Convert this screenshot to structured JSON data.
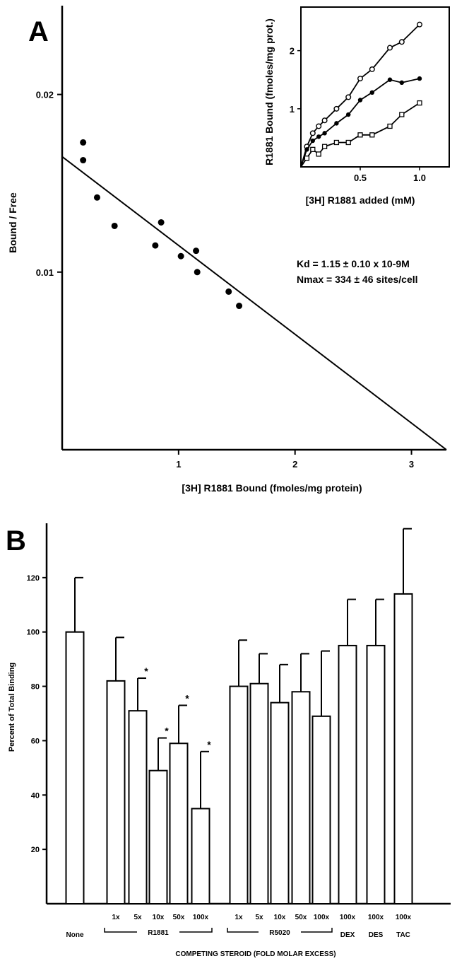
{
  "chart_data": [
    {
      "panel": "A",
      "type": "scatter",
      "xlabel": "[3H] R1881 Bound (fmoles/mg protein)",
      "ylabel": "Bound / Free",
      "xlim": [
        0,
        3.3
      ],
      "ylim": [
        0,
        0.025
      ],
      "xticks": [
        {
          "v": 1,
          "label": "1"
        },
        {
          "v": 2,
          "label": "2"
        },
        {
          "v": 3,
          "label": "3"
        }
      ],
      "yticks": [
        {
          "v": 0.01,
          "label": "0.01"
        },
        {
          "v": 0.02,
          "label": "0.02"
        }
      ],
      "points": [
        {
          "x": 0.18,
          "y": 0.0173
        },
        {
          "x": 0.18,
          "y": 0.0163
        },
        {
          "x": 0.3,
          "y": 0.0142
        },
        {
          "x": 0.45,
          "y": 0.0126
        },
        {
          "x": 0.8,
          "y": 0.0115
        },
        {
          "x": 0.85,
          "y": 0.0128
        },
        {
          "x": 1.02,
          "y": 0.0109
        },
        {
          "x": 1.15,
          "y": 0.0112
        },
        {
          "x": 1.16,
          "y": 0.01
        },
        {
          "x": 1.43,
          "y": 0.0089
        },
        {
          "x": 1.52,
          "y": 0.0081
        }
      ],
      "fit_line": {
        "x": [
          0,
          3.3
        ],
        "y": [
          0.0165,
          0
        ]
      },
      "annotations": [
        "Kd = 1.15 ± 0.10 x 10-9M",
        "Nmax = 334 ± 46 sites/cell"
      ],
      "inset": {
        "type": "line",
        "xlabel": "[3H] R1881 added (mM)",
        "ylabel": "R1881 Bound (fmoles/mg prot.)",
        "xlim": [
          0,
          1.25
        ],
        "ylim": [
          0,
          2.75
        ],
        "xticks": [
          {
            "v": 0.5,
            "label": "0.5"
          },
          {
            "v": 1.0,
            "label": "1.0"
          }
        ],
        "yticks": [
          {
            "v": 1,
            "label": "1"
          },
          {
            "v": 2,
            "label": "2"
          }
        ],
        "series": [
          {
            "marker": "open-circle",
            "x": [
              0.05,
              0.1,
              0.15,
              0.2,
              0.3,
              0.4,
              0.5,
              0.6,
              0.75,
              0.85,
              1.0
            ],
            "y": [
              0.35,
              0.58,
              0.7,
              0.8,
              1.0,
              1.2,
              1.52,
              1.68,
              2.05,
              2.15,
              2.45
            ]
          },
          {
            "marker": "filled-circle",
            "x": [
              0.05,
              0.1,
              0.15,
              0.2,
              0.3,
              0.4,
              0.5,
              0.6,
              0.75,
              0.85,
              1.0
            ],
            "y": [
              0.3,
              0.45,
              0.52,
              0.58,
              0.75,
              0.9,
              1.15,
              1.28,
              1.5,
              1.45,
              1.52
            ]
          },
          {
            "marker": "open-square",
            "x": [
              0.05,
              0.1,
              0.15,
              0.2,
              0.3,
              0.4,
              0.5,
              0.6,
              0.75,
              0.85,
              1.0
            ],
            "y": [
              0.15,
              0.3,
              0.22,
              0.35,
              0.42,
              0.42,
              0.55,
              0.55,
              0.7,
              0.9,
              1.1
            ]
          }
        ]
      }
    },
    {
      "panel": "B",
      "type": "bar",
      "ylabel": "Percent of Total Binding",
      "xlabel": "COMPETING STEROID (FOLD MOLAR EXCESS)",
      "ylim": [
        0,
        140
      ],
      "yticks": [
        {
          "v": 20,
          "label": "20"
        },
        {
          "v": 40,
          "label": "40"
        },
        {
          "v": 60,
          "label": "60"
        },
        {
          "v": 80,
          "label": "80"
        },
        {
          "v": 100,
          "label": "100"
        },
        {
          "v": 120,
          "label": "120"
        }
      ],
      "bars": [
        {
          "label": "None",
          "group": "",
          "value": 100,
          "error": 20,
          "significant": false
        },
        {
          "label": "1x",
          "group": "R1881",
          "value": 82,
          "error": 16,
          "significant": false
        },
        {
          "label": "5x",
          "group": "R1881",
          "value": 71,
          "error": 12,
          "significant": true
        },
        {
          "label": "10x",
          "group": "R1881",
          "value": 49,
          "error": 12,
          "significant": true
        },
        {
          "label": "50x",
          "group": "R1881",
          "value": 59,
          "error": 14,
          "significant": true
        },
        {
          "label": "100x",
          "group": "R1881",
          "value": 35,
          "error": 21,
          "significant": true
        },
        {
          "label": "1x",
          "group": "R5020",
          "value": 80,
          "error": 17,
          "significant": false
        },
        {
          "label": "5x",
          "group": "R5020",
          "value": 81,
          "error": 11,
          "significant": false
        },
        {
          "label": "10x",
          "group": "R5020",
          "value": 74,
          "error": 14,
          "significant": false
        },
        {
          "label": "50x",
          "group": "R5020",
          "value": 78,
          "error": 14,
          "significant": false
        },
        {
          "label": "100x",
          "group": "R5020",
          "value": 69,
          "error": 24,
          "significant": false
        },
        {
          "label": "100x",
          "group": "DEX",
          "value": 95,
          "error": 17,
          "significant": false
        },
        {
          "label": "100x",
          "group": "DES",
          "value": 95,
          "error": 17,
          "significant": false
        },
        {
          "label": "100x",
          "group": "TAC",
          "value": 114,
          "error": 24,
          "significant": false
        }
      ],
      "groups": [
        {
          "name": "R1881"
        },
        {
          "name": "R5020"
        },
        {
          "name": "DEX"
        },
        {
          "name": "DES"
        },
        {
          "name": "TAC"
        }
      ],
      "other_labels": {
        "none": "None",
        "star": "*"
      }
    }
  ]
}
